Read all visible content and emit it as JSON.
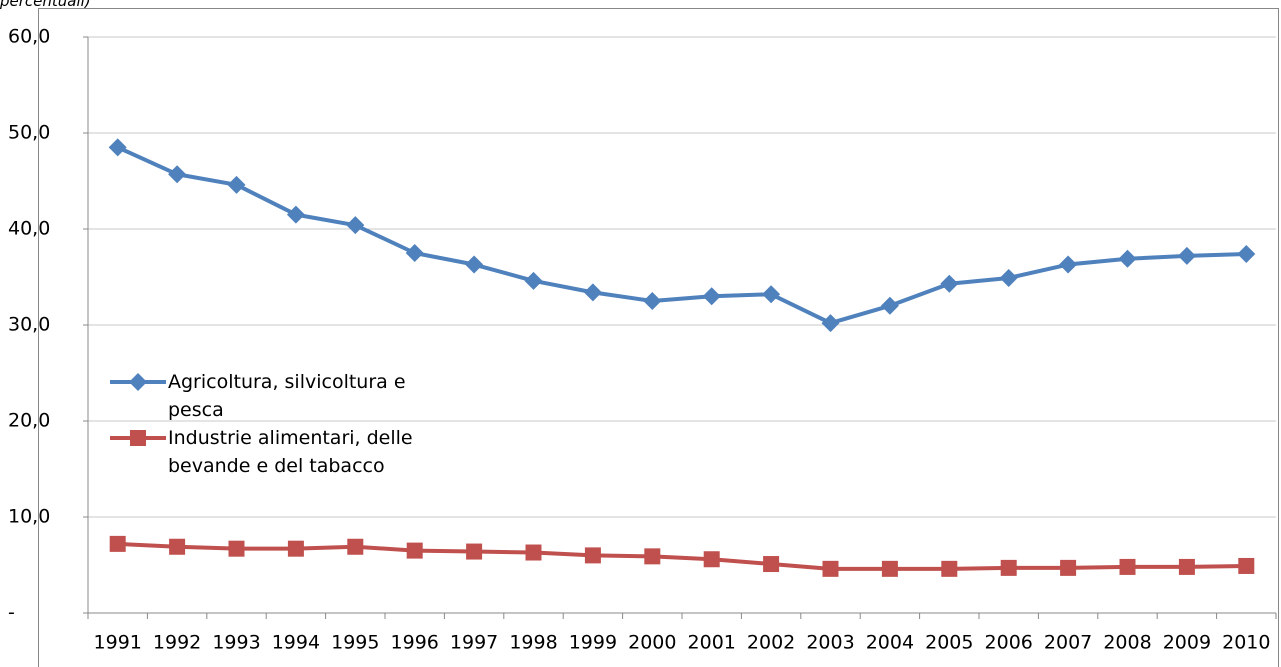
{
  "chart_data": {
    "type": "line",
    "title": "percentuali)",
    "categories": [
      "1991",
      "1992",
      "1993",
      "1994",
      "1995",
      "1996",
      "1997",
      "1998",
      "1999",
      "2000",
      "2001",
      "2002",
      "2003",
      "2004",
      "2005",
      "2006",
      "2007",
      "2008",
      "2009",
      "2010"
    ],
    "series": [
      {
        "name": "Agricoltura, silvicoltura e pesca",
        "color": "#4f81bd",
        "marker": "diamond",
        "values": [
          48.5,
          45.7,
          44.6,
          41.5,
          40.4,
          37.5,
          36.3,
          34.6,
          33.4,
          32.5,
          33.0,
          33.2,
          30.2,
          32.0,
          34.3,
          34.9,
          36.3,
          36.9,
          37.2,
          37.4
        ]
      },
      {
        "name": "Industrie alimentari, delle bevande e del tabacco",
        "color": "#c0504d",
        "marker": "square",
        "values": [
          7.2,
          6.9,
          6.7,
          6.7,
          6.9,
          6.5,
          6.4,
          6.3,
          6.0,
          5.9,
          5.6,
          5.1,
          4.6,
          4.6,
          4.6,
          4.7,
          4.7,
          4.8,
          4.8,
          4.9
        ]
      }
    ],
    "ylim": [
      0,
      60
    ],
    "yticks": [
      {
        "value": 0,
        "label": "-"
      },
      {
        "value": 10,
        "label": "10,0"
      },
      {
        "value": 20,
        "label": "20,0"
      },
      {
        "value": 30,
        "label": "30,0"
      },
      {
        "value": 40,
        "label": "40,0"
      },
      {
        "value": 50,
        "label": "50,0"
      },
      {
        "value": 60,
        "label": "60,0"
      }
    ],
    "grid": true
  }
}
